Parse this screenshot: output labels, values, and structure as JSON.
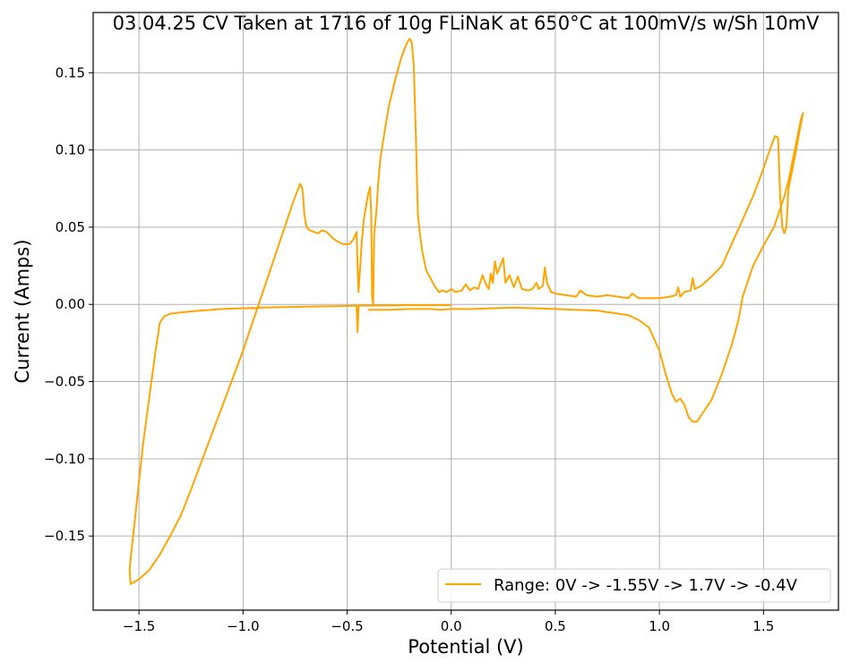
{
  "chart_data": {
    "type": "line",
    "title": "03.04.25 CV Taken at 1716 of 10g FLiNaK at 650°C at 100mV/s w/Sh 10mV",
    "xlabel": "Potential (V)",
    "ylabel": "Current (Amps)",
    "xlim": [
      -1.72,
      1.86
    ],
    "ylim": [
      -0.198,
      0.189
    ],
    "xticks": [
      -1.5,
      -1.0,
      -0.5,
      0.0,
      0.5,
      1.0,
      1.5
    ],
    "xtick_labels": [
      "−1.5",
      "−1.0",
      "−0.5",
      "0.0",
      "0.5",
      "1.0",
      "1.5"
    ],
    "yticks": [
      -0.15,
      -0.1,
      -0.05,
      0.0,
      0.05,
      0.1,
      0.15
    ],
    "ytick_labels": [
      "−0.15",
      "−0.10",
      "−0.05",
      "0.00",
      "0.05",
      "0.10",
      "0.15"
    ],
    "grid": true,
    "legend_position": "bottom-right",
    "series": [
      {
        "name": "Range: 0V -> -1.55V -> 1.7V -> -0.4V",
        "color": "#ffa500",
        "points": [
          [
            0.0,
            -0.0005
          ],
          [
            -0.1,
            -0.0005
          ],
          [
            -0.2,
            -0.0005
          ],
          [
            -0.3,
            -0.0007
          ],
          [
            -0.4,
            -0.0008
          ],
          [
            -0.445,
            -0.0008
          ],
          [
            -0.45,
            -0.018
          ],
          [
            -0.455,
            -0.0008
          ],
          [
            -0.5,
            -0.001
          ],
          [
            -0.7,
            -0.0015
          ],
          [
            -0.9,
            -0.002
          ],
          [
            -1.1,
            -0.003
          ],
          [
            -1.25,
            -0.0045
          ],
          [
            -1.35,
            -0.006
          ],
          [
            -1.38,
            -0.008
          ],
          [
            -1.4,
            -0.012
          ],
          [
            -1.42,
            -0.03
          ],
          [
            -1.45,
            -0.06
          ],
          [
            -1.48,
            -0.09
          ],
          [
            -1.5,
            -0.115
          ],
          [
            -1.52,
            -0.14
          ],
          [
            -1.54,
            -0.165
          ],
          [
            -1.545,
            -0.172
          ],
          [
            -1.54,
            -0.181
          ],
          [
            -1.5,
            -0.178
          ],
          [
            -1.45,
            -0.172
          ],
          [
            -1.4,
            -0.162
          ],
          [
            -1.35,
            -0.15
          ],
          [
            -1.3,
            -0.137
          ],
          [
            -1.25,
            -0.12
          ],
          [
            -1.2,
            -0.102
          ],
          [
            -1.1,
            -0.066
          ],
          [
            -1.0,
            -0.03
          ],
          [
            -0.95,
            -0.01
          ],
          [
            -0.9,
            0.01
          ],
          [
            -0.85,
            0.03
          ],
          [
            -0.8,
            0.05
          ],
          [
            -0.76,
            0.066
          ],
          [
            -0.735,
            0.075
          ],
          [
            -0.725,
            0.078
          ],
          [
            -0.715,
            0.075
          ],
          [
            -0.705,
            0.058
          ],
          [
            -0.695,
            0.05
          ],
          [
            -0.68,
            0.048
          ],
          [
            -0.64,
            0.046
          ],
          [
            -0.62,
            0.048
          ],
          [
            -0.6,
            0.047
          ],
          [
            -0.57,
            0.043
          ],
          [
            -0.55,
            0.041
          ],
          [
            -0.52,
            0.039
          ],
          [
            -0.49,
            0.039
          ],
          [
            -0.47,
            0.042
          ],
          [
            -0.455,
            0.047
          ],
          [
            -0.45,
            0.025
          ],
          [
            -0.445,
            0.008
          ],
          [
            -0.43,
            0.04
          ],
          [
            -0.42,
            0.055
          ],
          [
            -0.4,
            0.071
          ],
          [
            -0.39,
            0.076
          ],
          [
            -0.385,
            0.06
          ],
          [
            -0.38,
            0.005
          ],
          [
            -0.375,
            0.0
          ],
          [
            -0.37,
            0.045
          ],
          [
            -0.36,
            0.06
          ],
          [
            -0.35,
            0.08
          ],
          [
            -0.34,
            0.095
          ],
          [
            -0.32,
            0.112
          ],
          [
            -0.3,
            0.128
          ],
          [
            -0.27,
            0.145
          ],
          [
            -0.24,
            0.16
          ],
          [
            -0.21,
            0.17
          ],
          [
            -0.2,
            0.172
          ],
          [
            -0.19,
            0.17
          ],
          [
            -0.18,
            0.155
          ],
          [
            -0.17,
            0.11
          ],
          [
            -0.16,
            0.058
          ],
          [
            -0.15,
            0.045
          ],
          [
            -0.14,
            0.035
          ],
          [
            -0.12,
            0.022
          ],
          [
            -0.1,
            0.017
          ],
          [
            -0.08,
            0.012
          ],
          [
            -0.06,
            0.008
          ],
          [
            -0.04,
            0.009
          ],
          [
            -0.02,
            0.008
          ],
          [
            0.0,
            0.01
          ],
          [
            0.02,
            0.008
          ],
          [
            0.05,
            0.009
          ],
          [
            0.07,
            0.013
          ],
          [
            0.09,
            0.009
          ],
          [
            0.11,
            0.011
          ],
          [
            0.13,
            0.01
          ],
          [
            0.15,
            0.019
          ],
          [
            0.17,
            0.012
          ],
          [
            0.18,
            0.01
          ],
          [
            0.19,
            0.02
          ],
          [
            0.2,
            0.014
          ],
          [
            0.21,
            0.028
          ],
          [
            0.22,
            0.02
          ],
          [
            0.23,
            0.023
          ],
          [
            0.25,
            0.03
          ],
          [
            0.26,
            0.014
          ],
          [
            0.28,
            0.019
          ],
          [
            0.3,
            0.011
          ],
          [
            0.32,
            0.018
          ],
          [
            0.34,
            0.01
          ],
          [
            0.37,
            0.009
          ],
          [
            0.39,
            0.01
          ],
          [
            0.41,
            0.014
          ],
          [
            0.42,
            0.01
          ],
          [
            0.44,
            0.012
          ],
          [
            0.45,
            0.024
          ],
          [
            0.46,
            0.014
          ],
          [
            0.48,
            0.008
          ],
          [
            0.5,
            0.007
          ],
          [
            0.55,
            0.006
          ],
          [
            0.6,
            0.005
          ],
          [
            0.62,
            0.009
          ],
          [
            0.65,
            0.006
          ],
          [
            0.7,
            0.005
          ],
          [
            0.75,
            0.006
          ],
          [
            0.8,
            0.005
          ],
          [
            0.85,
            0.004
          ],
          [
            0.87,
            0.007
          ],
          [
            0.9,
            0.004
          ],
          [
            0.95,
            0.004
          ],
          [
            1.0,
            0.004
          ],
          [
            1.05,
            0.005
          ],
          [
            1.08,
            0.006
          ],
          [
            1.09,
            0.011
          ],
          [
            1.1,
            0.005
          ],
          [
            1.12,
            0.008
          ],
          [
            1.15,
            0.009
          ],
          [
            1.16,
            0.017
          ],
          [
            1.17,
            0.01
          ],
          [
            1.2,
            0.012
          ],
          [
            1.25,
            0.018
          ],
          [
            1.3,
            0.025
          ],
          [
            1.35,
            0.04
          ],
          [
            1.4,
            0.055
          ],
          [
            1.45,
            0.07
          ],
          [
            1.5,
            0.088
          ],
          [
            1.53,
            0.1
          ],
          [
            1.555,
            0.109
          ],
          [
            1.57,
            0.108
          ],
          [
            1.58,
            0.07
          ],
          [
            1.59,
            0.05
          ],
          [
            1.6,
            0.046
          ],
          [
            1.61,
            0.05
          ],
          [
            1.62,
            0.075
          ],
          [
            1.65,
            0.095
          ],
          [
            1.67,
            0.11
          ],
          [
            1.69,
            0.124
          ],
          [
            1.68,
            0.12
          ],
          [
            1.65,
            0.1
          ],
          [
            1.62,
            0.08
          ],
          [
            1.6,
            0.07
          ],
          [
            1.55,
            0.05
          ],
          [
            1.5,
            0.038
          ],
          [
            1.45,
            0.025
          ],
          [
            1.4,
            0.005
          ],
          [
            1.38,
            -0.01
          ],
          [
            1.35,
            -0.025
          ],
          [
            1.3,
            -0.045
          ],
          [
            1.25,
            -0.062
          ],
          [
            1.2,
            -0.072
          ],
          [
            1.18,
            -0.076
          ],
          [
            1.16,
            -0.076
          ],
          [
            1.14,
            -0.073
          ],
          [
            1.12,
            -0.065
          ],
          [
            1.1,
            -0.061
          ],
          [
            1.08,
            -0.063
          ],
          [
            1.06,
            -0.058
          ],
          [
            1.03,
            -0.045
          ],
          [
            1.0,
            -0.03
          ],
          [
            0.95,
            -0.015
          ],
          [
            0.9,
            -0.01
          ],
          [
            0.85,
            -0.007
          ],
          [
            0.7,
            -0.004
          ],
          [
            0.5,
            -0.003
          ],
          [
            0.3,
            -0.002
          ],
          [
            0.1,
            -0.003
          ],
          [
            0.0,
            -0.003
          ],
          [
            -0.05,
            -0.0035
          ],
          [
            -0.1,
            -0.003
          ],
          [
            -0.2,
            -0.003
          ],
          [
            -0.3,
            -0.0035
          ],
          [
            -0.4,
            -0.0035
          ]
        ]
      }
    ]
  }
}
